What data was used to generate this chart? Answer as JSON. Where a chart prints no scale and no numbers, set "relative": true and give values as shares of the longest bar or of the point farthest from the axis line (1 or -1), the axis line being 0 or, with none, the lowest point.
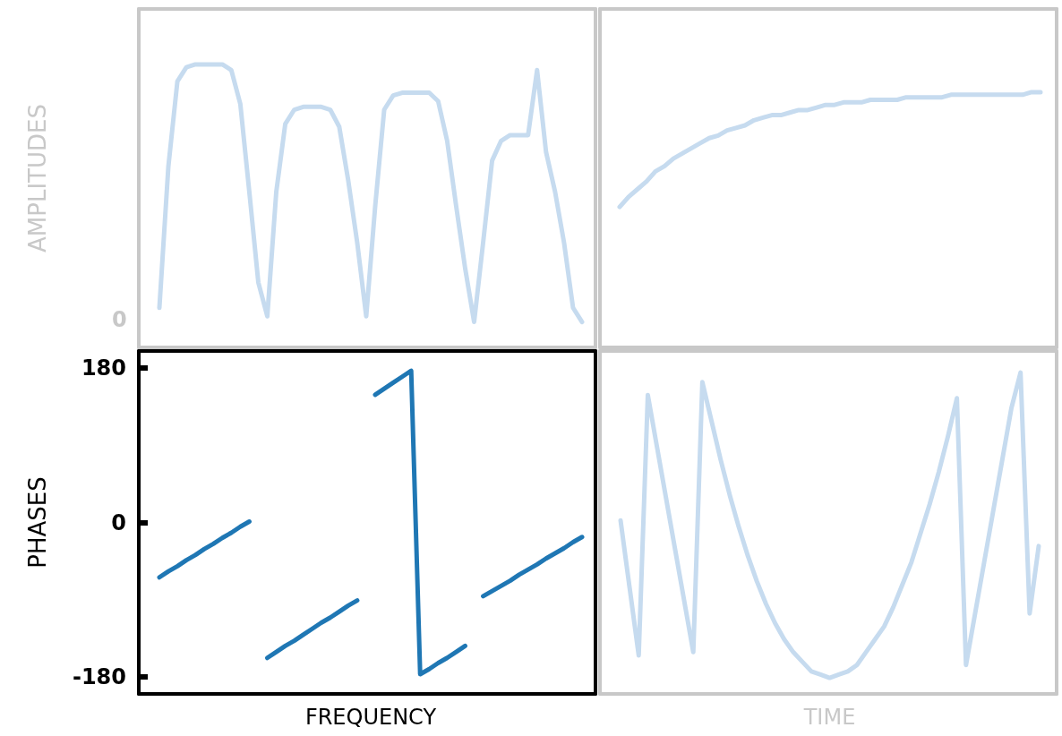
{
  "chart_data": [
    {
      "type": "line",
      "ylabel": "AMPLITUDES",
      "relative": true,
      "tick_labels": "y",
      "annotations": [
        "0"
      ],
      "categories": [
        null,
        null,
        null,
        null,
        null,
        null,
        null,
        null,
        null,
        null,
        null,
        null,
        null,
        null,
        null,
        null,
        null,
        null,
        null,
        null,
        null,
        null,
        null,
        null,
        null,
        null,
        null,
        null,
        null,
        null,
        null,
        null,
        null,
        null,
        null,
        null,
        null,
        null,
        null,
        null,
        null,
        null,
        null,
        null,
        null,
        null,
        null,
        null
      ],
      "series": [
        {
          "color": "#c6dbef",
          "values": [
            0.14,
            0.64,
            0.94,
            0.99,
            1,
            1,
            1,
            1,
            0.98,
            0.86,
            0.55,
            0.23,
            0.11,
            0.55,
            0.79,
            0.84,
            0.85,
            0.85,
            0.85,
            0.84,
            0.78,
            0.59,
            0.37,
            0.11,
            0.5,
            0.84,
            0.89,
            0.9,
            0.9,
            0.9,
            0.9,
            0.87,
            0.73,
            0.5,
            0.28,
            0.09,
            0.37,
            0.66,
            0.73,
            0.75,
            0.75,
            0.75,
            0.98,
            0.69,
            0.55,
            0.37,
            0.14,
            0.09
          ]
        }
      ]
    },
    {
      "type": "line",
      "relative": true,
      "tick_labels": false,
      "categories": [
        null,
        null,
        null,
        null,
        null,
        null,
        null,
        null,
        null,
        null,
        null,
        null,
        null,
        null,
        null,
        null,
        null,
        null,
        null,
        null,
        null,
        null,
        null,
        null,
        null,
        null,
        null,
        null,
        null,
        null,
        null,
        null,
        null,
        null,
        null,
        null,
        null,
        null,
        null,
        null,
        null,
        null,
        null,
        null,
        null,
        null,
        null,
        null
      ],
      "series": [
        {
          "color": "#c6dbef",
          "values": [
            0.55,
            0.59,
            0.62,
            0.65,
            0.69,
            0.71,
            0.74,
            0.76,
            0.78,
            0.8,
            0.82,
            0.83,
            0.85,
            0.86,
            0.87,
            0.89,
            0.9,
            0.91,
            0.91,
            0.92,
            0.93,
            0.93,
            0.94,
            0.95,
            0.95,
            0.96,
            0.96,
            0.96,
            0.97,
            0.97,
            0.97,
            0.97,
            0.98,
            0.98,
            0.98,
            0.98,
            0.98,
            0.99,
            0.99,
            0.99,
            0.99,
            0.99,
            0.99,
            0.99,
            0.99,
            0.99,
            1,
            1
          ]
        }
      ]
    },
    {
      "type": "line",
      "ylabel": "PHASES",
      "xlabel": "FREQUENCY",
      "tick_labels": "y",
      "ylim": [
        -200,
        200
      ],
      "yticks": [
        -180,
        0,
        180
      ],
      "categories": [
        null,
        null,
        null,
        null,
        null,
        null,
        null,
        null,
        null,
        null,
        null,
        null,
        null,
        null,
        null,
        null,
        null,
        null,
        null,
        null,
        null,
        null,
        null,
        null,
        null,
        null,
        null,
        null,
        null,
        null,
        null,
        null,
        null,
        null,
        null,
        null,
        null,
        null,
        null,
        null,
        null,
        null,
        null,
        null,
        null,
        null,
        null,
        null
      ],
      "series": [
        {
          "color": "#1f77b4",
          "values": [
            -64,
            -57,
            -51,
            -44,
            -38,
            -31,
            -25,
            -18,
            -12,
            -5,
            1,
            null,
            -158,
            -151,
            -144,
            -138,
            -131,
            -124,
            -117,
            -111,
            -104,
            -97,
            -91,
            null,
            149,
            156,
            163,
            170,
            177,
            -177,
            -171,
            -164,
            -158,
            -151,
            -144,
            null,
            -86,
            -80,
            -74,
            -68,
            -61,
            -55,
            -49,
            -42,
            -36,
            -30,
            -23,
            -17
          ]
        }
      ]
    },
    {
      "type": "line",
      "xlabel": "TIME",
      "relative": true,
      "tick_labels": false,
      "categories": [
        null,
        null,
        null,
        null,
        null,
        null,
        null,
        null,
        null,
        null,
        null,
        null,
        null,
        null,
        null,
        null,
        null,
        null,
        null,
        null,
        null,
        null,
        null,
        null,
        null,
        null,
        null,
        null,
        null,
        null,
        null,
        null,
        null,
        null,
        null,
        null,
        null,
        null,
        null,
        null,
        null,
        null,
        null,
        null,
        null,
        null,
        null
      ],
      "series": [
        {
          "color": "#c6dbef",
          "values": [
            0.54,
            0.33,
            0.12,
            0.93,
            0.77,
            0.61,
            0.45,
            0.29,
            0.13,
            0.97,
            0.85,
            0.73,
            0.62,
            0.52,
            0.43,
            0.35,
            0.28,
            0.22,
            0.17,
            0.13,
            0.1,
            0.07,
            0.06,
            0.05,
            0.06,
            0.07,
            0.09,
            0.13,
            0.17,
            0.21,
            0.27,
            0.34,
            0.41,
            0.5,
            0.59,
            0.69,
            0.8,
            0.92,
            0.09,
            0.25,
            0.41,
            0.57,
            0.73,
            0.89,
            1,
            0.25,
            0.46
          ]
        }
      ]
    }
  ]
}
